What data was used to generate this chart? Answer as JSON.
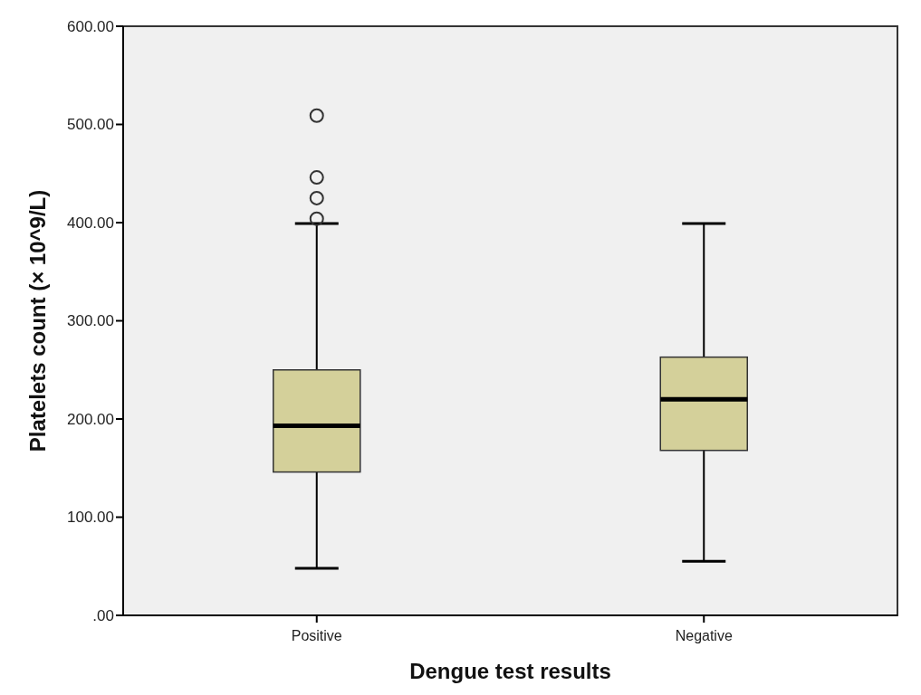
{
  "chart_data": {
    "type": "box",
    "xlabel": "Dengue test results",
    "ylabel": "Platelets count (× 10^9/L)",
    "categories": [
      "Positive",
      "Negative"
    ],
    "boxes": [
      {
        "low": 48,
        "q1": 146,
        "median": 193,
        "q3": 250,
        "high": 399,
        "outliers": [
          404,
          425,
          446,
          509
        ]
      },
      {
        "low": 55,
        "q1": 168,
        "median": 220,
        "q3": 263,
        "high": 399
      }
    ],
    "color": "#d4d09a",
    "ylim": [
      0,
      600
    ],
    "yticks": [
      {
        "value": 0,
        "label": ".00"
      },
      {
        "value": 100,
        "label": "100.00"
      },
      {
        "value": 200,
        "label": "200.00"
      },
      {
        "value": 300,
        "label": "300.00"
      },
      {
        "value": 400,
        "label": "400.00"
      },
      {
        "value": 500,
        "label": "500.00"
      },
      {
        "value": 600,
        "label": "600.00"
      }
    ],
    "grid": false
  }
}
